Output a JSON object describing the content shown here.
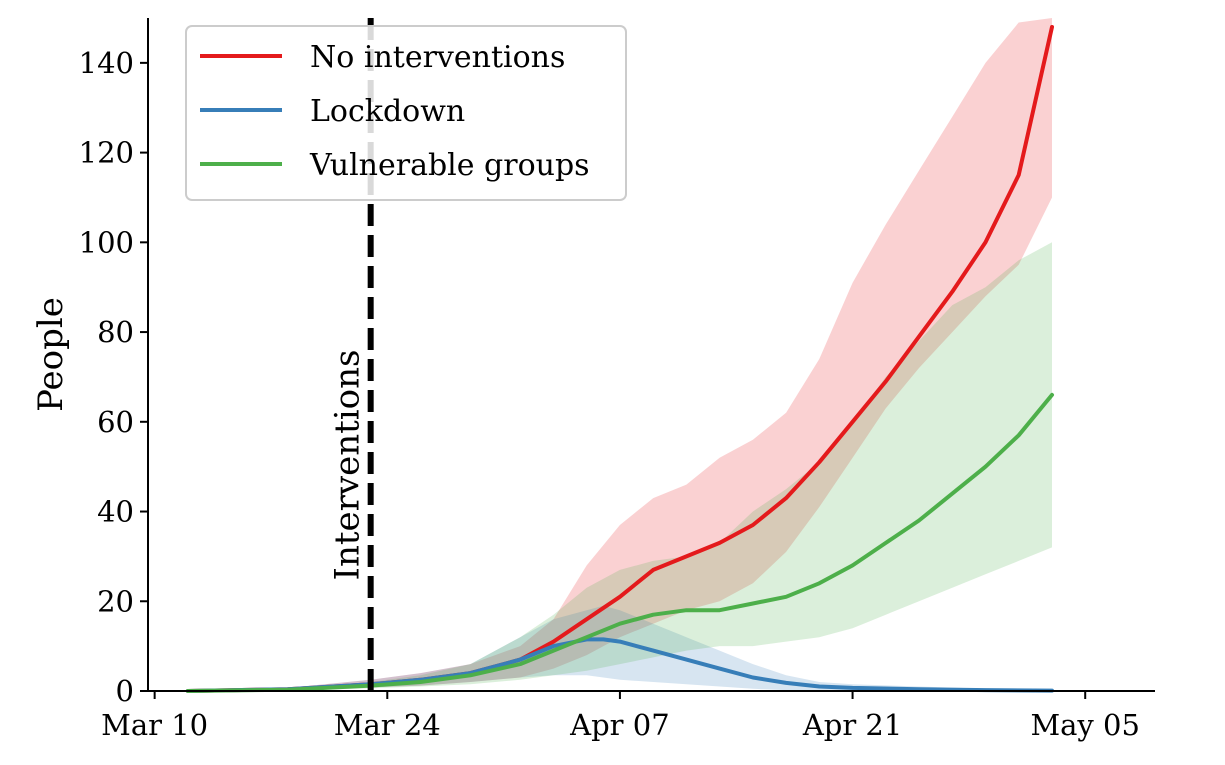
{
  "chart_data": {
    "type": "line",
    "title": "",
    "xlabel": "",
    "ylabel": "People",
    "x_start_date": "2020-03-10",
    "xlim_days": [
      -0.4,
      60.2
    ],
    "ylim": [
      0,
      150
    ],
    "x_ticks": [
      {
        "day": 0,
        "label": "Mar 10"
      },
      {
        "day": 14,
        "label": "Mar 24"
      },
      {
        "day": 28,
        "label": "Apr 07"
      },
      {
        "day": 42,
        "label": "Apr 21"
      },
      {
        "day": 56,
        "label": "May 05"
      }
    ],
    "y_ticks": [
      0,
      20,
      40,
      60,
      80,
      100,
      120,
      140
    ],
    "legend_position": "top-left",
    "annotation": {
      "label": "Interventions",
      "day": 13,
      "style": "dashed vertical line"
    },
    "series": [
      {
        "name": "No interventions",
        "color": "#e41a1c",
        "x": [
          2,
          8,
          13,
          16,
          19,
          22,
          24,
          26,
          28,
          30,
          32,
          34,
          36,
          38,
          40,
          42,
          44,
          46,
          48,
          50,
          52,
          54
        ],
        "values": [
          0,
          0.4,
          1.5,
          2.5,
          4,
          7,
          11,
          16,
          21,
          27,
          30,
          33,
          37,
          43,
          51,
          60,
          69,
          79,
          89,
          100,
          115,
          148
        ],
        "lower": [
          0,
          0.2,
          0.8,
          1.2,
          2,
          3,
          5,
          8,
          12,
          15,
          18,
          20,
          24,
          31,
          41,
          52,
          63,
          72,
          80,
          88,
          95,
          110
        ],
        "upper": [
          0,
          0.7,
          2.5,
          4,
          6,
          10,
          16,
          28,
          37,
          43,
          46,
          52,
          56,
          62,
          74,
          91,
          104,
          116,
          128,
          140,
          149,
          150
        ]
      },
      {
        "name": "Lockdown",
        "color": "#377eb8",
        "x": [
          2,
          8,
          13,
          16,
          19,
          22,
          24,
          26,
          27,
          28,
          30,
          32,
          34,
          36,
          38,
          40,
          42,
          46,
          50,
          54
        ],
        "values": [
          0,
          0.4,
          1.5,
          2.5,
          4,
          7,
          10,
          11.5,
          11.5,
          11,
          9,
          7,
          5,
          3,
          1.8,
          1,
          0.7,
          0.4,
          0.2,
          0.1
        ],
        "lower": [
          0,
          0.2,
          0.8,
          1.2,
          2,
          3,
          3.5,
          3.5,
          3,
          2.5,
          2,
          1.5,
          1,
          0.5,
          0.2,
          0.1,
          0,
          0,
          0,
          0
        ],
        "upper": [
          0,
          0.7,
          2.5,
          4,
          6,
          12,
          16,
          18,
          19,
          18,
          15,
          12,
          9,
          6,
          3.5,
          2,
          1.5,
          1,
          0.5,
          0.3
        ]
      },
      {
        "name": "Vulnerable groups",
        "color": "#4daf4a",
        "x": [
          2,
          8,
          13,
          16,
          19,
          22,
          24,
          26,
          28,
          30,
          32,
          34,
          36,
          38,
          40,
          42,
          44,
          46,
          48,
          50,
          52,
          54
        ],
        "values": [
          0,
          0.3,
          1.2,
          2,
          3.5,
          6,
          9,
          12,
          15,
          17,
          18,
          18,
          19.5,
          21,
          24,
          28,
          33,
          38,
          44,
          50,
          57,
          66
        ],
        "lower": [
          0,
          0.1,
          0.6,
          1,
          1.5,
          2.5,
          3.5,
          4.5,
          6,
          7.5,
          9,
          10,
          10,
          11,
          12,
          14,
          17,
          20,
          23,
          26,
          29,
          32
        ],
        "upper": [
          0,
          0.5,
          2,
          3.5,
          6,
          12,
          17,
          23,
          27,
          29,
          30,
          33,
          40,
          45,
          51,
          60,
          70,
          78,
          86,
          90,
          96,
          100
        ]
      }
    ]
  }
}
